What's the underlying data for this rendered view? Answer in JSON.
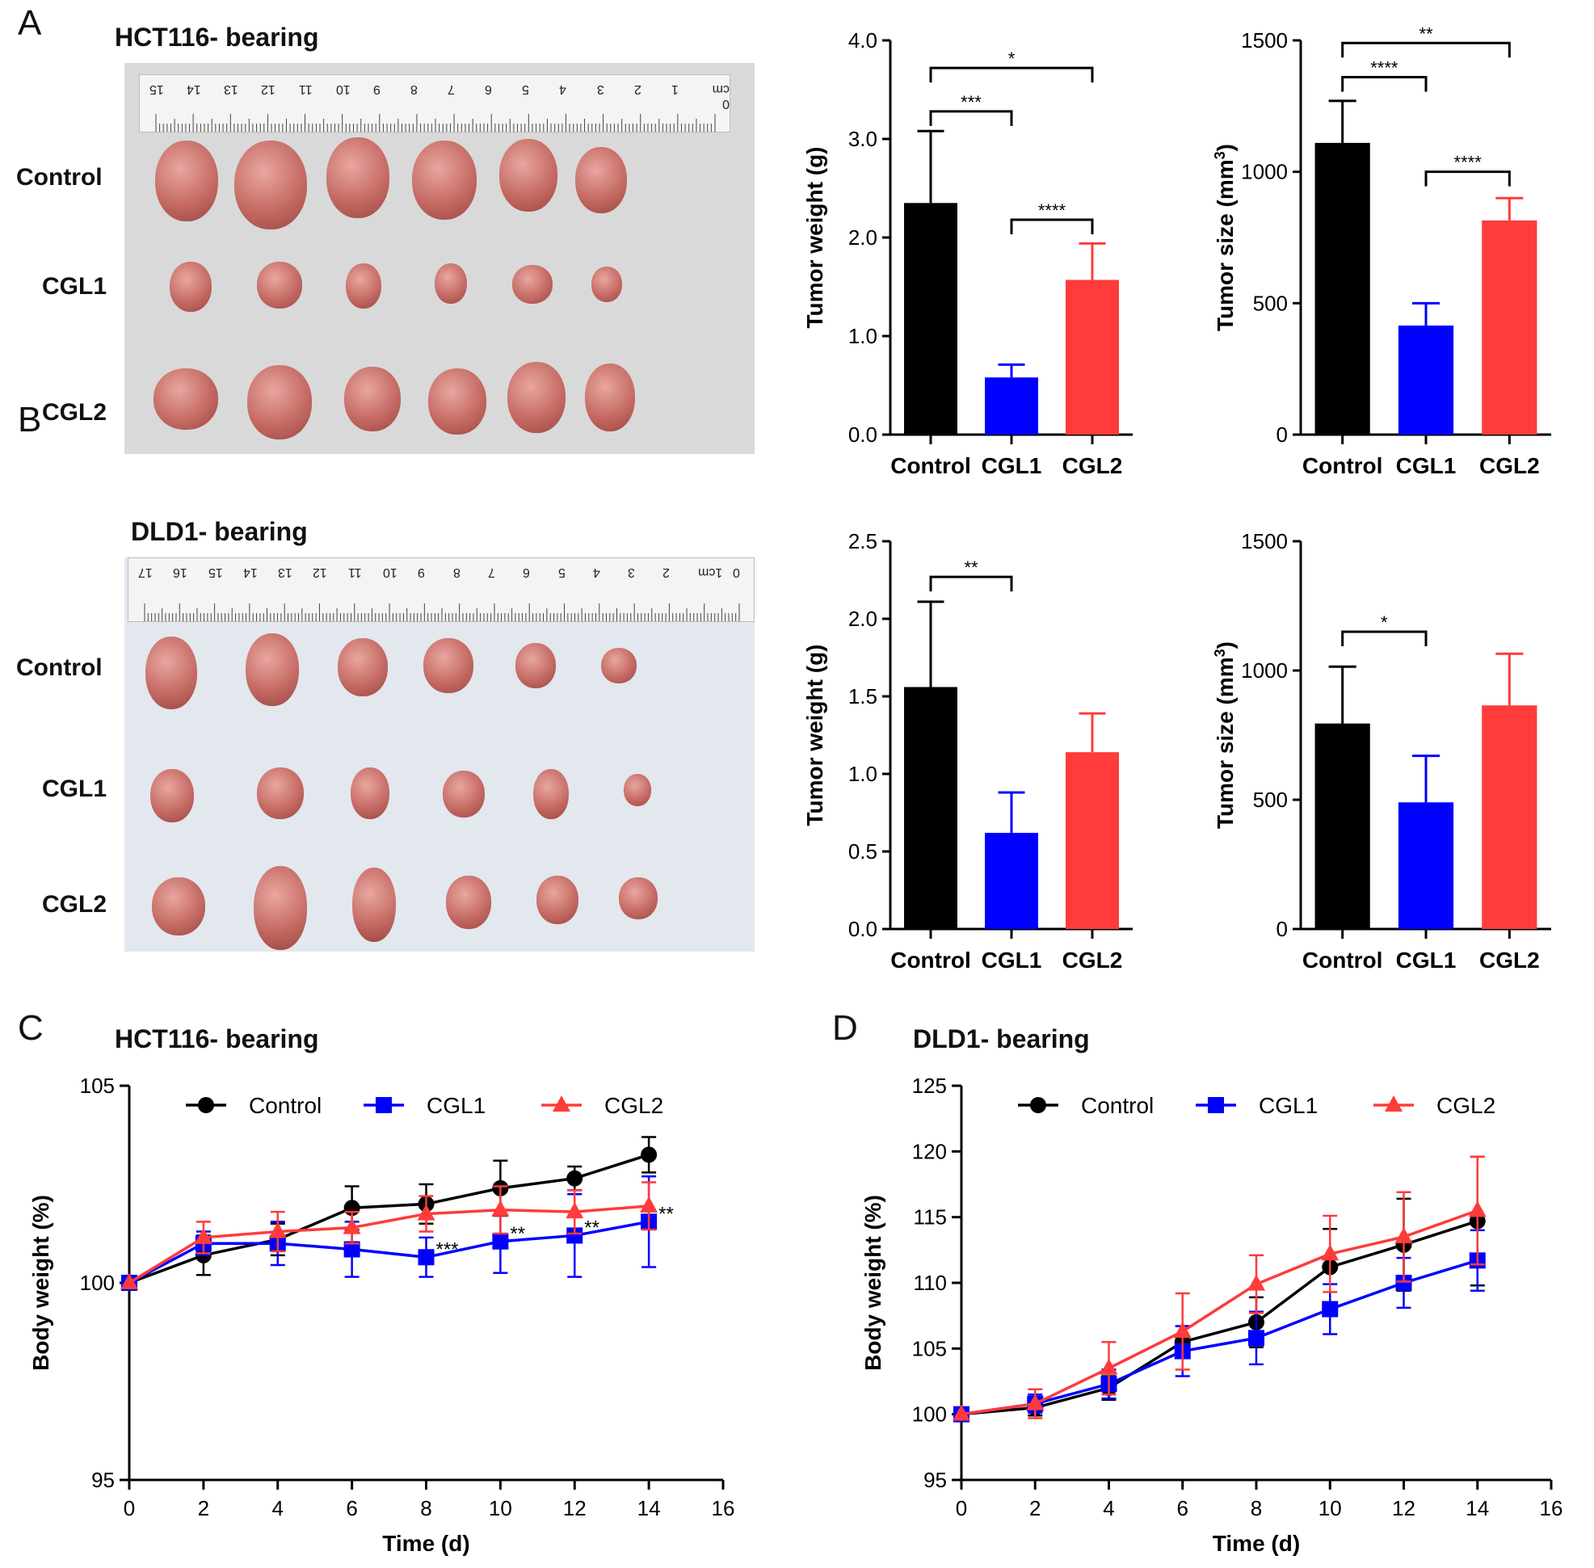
{
  "panels": {
    "A": {
      "letter": "A",
      "title": "HCT116- bearing"
    },
    "B": {
      "letter": "B",
      "title": "DLD1- bearing"
    },
    "C": {
      "letter": "C",
      "title": "HCT116- bearing"
    },
    "D": {
      "letter": "D",
      "title": "DLD1- bearing"
    }
  },
  "photos": {
    "A": {
      "ruler_numbers": [
        "0 cm",
        "1",
        "2",
        "3",
        "4",
        "5",
        "6",
        "7",
        "8",
        "9",
        "10",
        "11",
        "12",
        "13",
        "14",
        "15"
      ],
      "rows": [
        "Control",
        "CGL1",
        "CGL2"
      ]
    },
    "B": {
      "ruler_numbers": [
        "0",
        "1cm",
        "2",
        "3",
        "4",
        "5",
        "6",
        "7",
        "8",
        "9",
        "10",
        "11",
        "12",
        "13",
        "14",
        "15",
        "16",
        "17"
      ],
      "rows": [
        "Control",
        "CGL1",
        "CGL2"
      ]
    }
  },
  "colors": {
    "control": "#000000",
    "cgl1": "#0000ff",
    "cgl2": "#ff3b3b"
  },
  "chart_data": [
    {
      "id": "A-weight",
      "type": "bar",
      "categories": [
        "Control",
        "CGL1",
        "CGL2"
      ],
      "values": [
        2.35,
        0.58,
        1.57
      ],
      "errors": [
        0.73,
        0.13,
        0.37
      ],
      "ylabel": "Tumor weight (g)",
      "ylim": [
        0,
        4
      ],
      "ticks": [
        "0.0",
        "1.0",
        "2.0",
        "3.0",
        "4.0"
      ],
      "tick_values": [
        0,
        1,
        2,
        3,
        4
      ],
      "significance": [
        {
          "from": 0,
          "to": 2,
          "label": "*",
          "level": 3.72
        },
        {
          "from": 0,
          "to": 1,
          "label": "***",
          "level": 3.28
        },
        {
          "from": 1,
          "to": 2,
          "label": "****",
          "level": 2.18
        }
      ]
    },
    {
      "id": "A-size",
      "type": "bar",
      "categories": [
        "Control",
        "CGL1",
        "CGL2"
      ],
      "values": [
        1110,
        415,
        815
      ],
      "errors": [
        160,
        85,
        85
      ],
      "ylabel": "Tumor size (mm3)",
      "ylim": [
        0,
        1500
      ],
      "ticks": [
        "0",
        "500",
        "1000",
        "1500"
      ],
      "tick_values": [
        0,
        500,
        1000,
        1500
      ],
      "significance": [
        {
          "from": 0,
          "to": 2,
          "label": "**",
          "level": 1490
        },
        {
          "from": 0,
          "to": 1,
          "label": "****",
          "level": 1360
        },
        {
          "from": 1,
          "to": 2,
          "label": "****",
          "level": 1000
        }
      ]
    },
    {
      "id": "B-weight",
      "type": "bar",
      "categories": [
        "Control",
        "CGL1",
        "CGL2"
      ],
      "values": [
        1.56,
        0.62,
        1.14
      ],
      "errors": [
        0.55,
        0.26,
        0.25
      ],
      "ylabel": "Tumor weight (g)",
      "ylim": [
        0,
        2.5
      ],
      "ticks": [
        "0.0",
        "0.5",
        "1.0",
        "1.5",
        "2.0",
        "2.5"
      ],
      "tick_values": [
        0,
        0.5,
        1,
        1.5,
        2,
        2.5
      ],
      "significance": [
        {
          "from": 0,
          "to": 1,
          "label": "**",
          "level": 2.27
        }
      ]
    },
    {
      "id": "B-size",
      "type": "bar",
      "categories": [
        "Control",
        "CGL1",
        "CGL2"
      ],
      "values": [
        795,
        490,
        865
      ],
      "errors": [
        220,
        180,
        200
      ],
      "ylabel": "Tumor size (mm3)",
      "ylim": [
        0,
        1500
      ],
      "ticks": [
        "0",
        "500",
        "1000",
        "1500"
      ],
      "tick_values": [
        0,
        500,
        1000,
        1500
      ],
      "significance": [
        {
          "from": 0,
          "to": 1,
          "label": "*",
          "level": 1150
        }
      ]
    },
    {
      "id": "C-line",
      "type": "line",
      "title": "HCT116- bearing",
      "xlabel": "Time (d)",
      "ylabel": "Body weight (%)",
      "xlim": [
        0,
        16
      ],
      "ylim": [
        95,
        105
      ],
      "xticks": [
        0,
        2,
        4,
        6,
        8,
        10,
        12,
        14,
        16
      ],
      "yticks": [
        95,
        100,
        105
      ],
      "x": [
        0,
        2,
        4,
        6,
        8,
        10,
        12,
        14
      ],
      "series": [
        {
          "name": "Control",
          "key": "control",
          "marker": "circle",
          "values": [
            100,
            100.7,
            101.1,
            101.9,
            102.0,
            102.4,
            102.65,
            103.25
          ],
          "errors": [
            0,
            0.5,
            0.4,
            0.55,
            0.5,
            0.7,
            0.3,
            0.45
          ]
        },
        {
          "name": "CGL1",
          "key": "cgl1",
          "marker": "square",
          "values": [
            100,
            101.0,
            101.0,
            100.85,
            100.65,
            101.05,
            101.2,
            101.55
          ],
          "errors": [
            0,
            0.3,
            0.55,
            0.7,
            0.5,
            0.8,
            1.05,
            1.15
          ]
        },
        {
          "name": "CGL2",
          "key": "cgl2",
          "marker": "triangle",
          "values": [
            100,
            101.15,
            101.3,
            101.4,
            101.75,
            101.85,
            101.8,
            101.95
          ],
          "errors": [
            0,
            0.4,
            0.5,
            0.4,
            0.45,
            0.6,
            0.55,
            0.6
          ]
        }
      ],
      "annotations": [
        {
          "x": 8,
          "text": "***"
        },
        {
          "x": 10,
          "text": "**"
        },
        {
          "x": 12,
          "text": "**"
        },
        {
          "x": 14,
          "text": "**"
        }
      ]
    },
    {
      "id": "D-line",
      "type": "line",
      "title": "DLD1- bearing",
      "xlabel": "Time (d)",
      "ylabel": "Body weight (%)",
      "xlim": [
        0,
        16
      ],
      "ylim": [
        95,
        125
      ],
      "xticks": [
        0,
        2,
        4,
        6,
        8,
        10,
        12,
        14,
        16
      ],
      "yticks": [
        95,
        100,
        105,
        110,
        115,
        120,
        125
      ],
      "x": [
        0,
        2,
        4,
        6,
        8,
        10,
        12,
        14
      ],
      "series": [
        {
          "name": "Control",
          "key": "control",
          "marker": "circle",
          "values": [
            100,
            100.5,
            102.0,
            105.5,
            107.0,
            111.2,
            112.9,
            114.7
          ],
          "errors": [
            0,
            0.6,
            0.9,
            1.2,
            1.9,
            2.9,
            3.5,
            4.9
          ]
        },
        {
          "name": "CGL1",
          "key": "cgl1",
          "marker": "square",
          "values": [
            100,
            100.8,
            102.3,
            104.8,
            105.8,
            108.0,
            110.0,
            111.7
          ],
          "errors": [
            0,
            0.7,
            1.1,
            1.9,
            2.0,
            1.9,
            1.9,
            2.3
          ]
        },
        {
          "name": "CGL2",
          "key": "cgl2",
          "marker": "triangle",
          "values": [
            100,
            100.8,
            103.5,
            106.3,
            109.9,
            112.2,
            113.5,
            115.5
          ],
          "errors": [
            0,
            1.1,
            2.0,
            2.9,
            2.2,
            2.9,
            3.4,
            4.1
          ]
        }
      ],
      "annotations": []
    }
  ]
}
